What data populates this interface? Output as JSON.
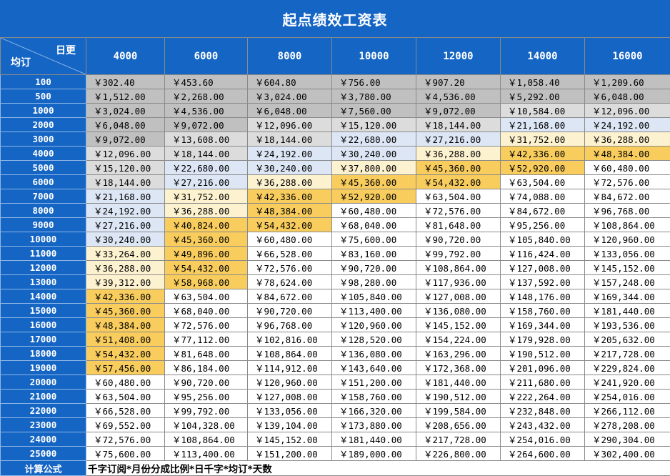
{
  "title": "起点绩效工资表",
  "corner": {
    "top": "日更",
    "bottom": "均订"
  },
  "columns": [
    "4000",
    "6000",
    "8000",
    "10000",
    "12000",
    "14000",
    "16000"
  ],
  "colors": {
    "header_blue": "#1565c4",
    "gray": "#c0c0c0",
    "light_gray": "#dcdcdc",
    "lavender": "#dce6f5",
    "cream": "#fdf2cf",
    "gold": "#f8cd5e",
    "white": "#ffffff"
  },
  "rows": [
    {
      "label": "100",
      "values": [
        "￥302.40",
        "￥453.60",
        "￥604.80",
        "￥756.00",
        "￥907.20",
        "￥1,058.40",
        "￥1,209.60"
      ],
      "fills": [
        "gray",
        "gray",
        "gray",
        "gray",
        "gray",
        "gray",
        "gray"
      ]
    },
    {
      "label": "500",
      "values": [
        "￥1,512.00",
        "￥2,268.00",
        "￥3,024.00",
        "￥3,780.00",
        "￥4,536.00",
        "￥5,292.00",
        "￥6,048.00"
      ],
      "fills": [
        "gray",
        "gray",
        "gray",
        "gray",
        "gray",
        "gray",
        "gray"
      ]
    },
    {
      "label": "1000",
      "values": [
        "￥3,024.00",
        "￥4,536.00",
        "￥6,048.00",
        "￥7,560.00",
        "￥9,072.00",
        "￥10,584.00",
        "￥12,096.00"
      ],
      "fills": [
        "gray",
        "gray",
        "gray",
        "gray",
        "gray",
        "light_gray",
        "light_gray"
      ]
    },
    {
      "label": "2000",
      "values": [
        "￥6,048.00",
        "￥9,072.00",
        "￥12,096.00",
        "￥15,120.00",
        "￥18,144.00",
        "￥21,168.00",
        "￥24,192.00"
      ],
      "fills": [
        "gray",
        "gray",
        "light_gray",
        "light_gray",
        "light_gray",
        "lavender",
        "lavender"
      ]
    },
    {
      "label": "3000",
      "values": [
        "￥9,072.00",
        "￥13,608.00",
        "￥18,144.00",
        "￥22,680.00",
        "￥27,216.00",
        "￥31,752.00",
        "￥36,288.00"
      ],
      "fills": [
        "gray",
        "light_gray",
        "light_gray",
        "lavender",
        "lavender",
        "cream",
        "cream"
      ]
    },
    {
      "label": "4000",
      "values": [
        "￥12,096.00",
        "￥18,144.00",
        "￥24,192.00",
        "￥30,240.00",
        "￥36,288.00",
        "￥42,336.00",
        "￥48,384.00"
      ],
      "fills": [
        "light_gray",
        "light_gray",
        "lavender",
        "lavender",
        "cream",
        "gold",
        "gold"
      ]
    },
    {
      "label": "5000",
      "values": [
        "￥15,120.00",
        "￥22,680.00",
        "￥30,240.00",
        "￥37,800.00",
        "￥45,360.00",
        "￥52,920.00",
        "￥60,480.00"
      ],
      "fills": [
        "light_gray",
        "lavender",
        "lavender",
        "cream",
        "gold",
        "gold",
        "white"
      ]
    },
    {
      "label": "6000",
      "values": [
        "￥18,144.00",
        "￥27,216.00",
        "￥36,288.00",
        "￥45,360.00",
        "￥54,432.00",
        "￥63,504.00",
        "￥72,576.00"
      ],
      "fills": [
        "light_gray",
        "lavender",
        "cream",
        "gold",
        "gold",
        "white",
        "white"
      ]
    },
    {
      "label": "7000",
      "values": [
        "￥21,168.00",
        "￥31,752.00",
        "￥42,336.00",
        "￥52,920.00",
        "￥63,504.00",
        "￥74,088.00",
        "￥84,672.00"
      ],
      "fills": [
        "lavender",
        "cream",
        "gold",
        "gold",
        "white",
        "white",
        "white"
      ]
    },
    {
      "label": "8000",
      "values": [
        "￥24,192.00",
        "￥36,288.00",
        "￥48,384.00",
        "￥60,480.00",
        "￥72,576.00",
        "￥84,672.00",
        "￥96,768.00"
      ],
      "fills": [
        "lavender",
        "cream",
        "gold",
        "white",
        "white",
        "white",
        "white"
      ]
    },
    {
      "label": "9000",
      "values": [
        "￥27,216.00",
        "￥40,824.00",
        "￥54,432.00",
        "￥68,040.00",
        "￥81,648.00",
        "￥95,256.00",
        "￥108,864.00"
      ],
      "fills": [
        "lavender",
        "gold",
        "gold",
        "white",
        "white",
        "white",
        "white"
      ]
    },
    {
      "label": "10000",
      "values": [
        "￥30,240.00",
        "￥45,360.00",
        "￥60,480.00",
        "￥75,600.00",
        "￥90,720.00",
        "￥105,840.00",
        "￥120,960.00"
      ],
      "fills": [
        "lavender",
        "gold",
        "white",
        "white",
        "white",
        "white",
        "white"
      ]
    },
    {
      "label": "11000",
      "values": [
        "￥33,264.00",
        "￥49,896.00",
        "￥66,528.00",
        "￥83,160.00",
        "￥99,792.00",
        "￥116,424.00",
        "￥133,056.00"
      ],
      "fills": [
        "cream",
        "gold",
        "white",
        "white",
        "white",
        "white",
        "white"
      ]
    },
    {
      "label": "12000",
      "values": [
        "￥36,288.00",
        "￥54,432.00",
        "￥72,576.00",
        "￥90,720.00",
        "￥108,864.00",
        "￥127,008.00",
        "￥145,152.00"
      ],
      "fills": [
        "cream",
        "gold",
        "white",
        "white",
        "white",
        "white",
        "white"
      ]
    },
    {
      "label": "13000",
      "values": [
        "￥39,312.00",
        "￥58,968.00",
        "￥78,624.00",
        "￥98,280.00",
        "￥117,936.00",
        "￥137,592.00",
        "￥157,248.00"
      ],
      "fills": [
        "cream",
        "gold",
        "white",
        "white",
        "white",
        "white",
        "white"
      ]
    },
    {
      "label": "14000",
      "values": [
        "￥42,336.00",
        "￥63,504.00",
        "￥84,672.00",
        "￥105,840.00",
        "￥127,008.00",
        "￥148,176.00",
        "￥169,344.00"
      ],
      "fills": [
        "gold",
        "white",
        "white",
        "white",
        "white",
        "white",
        "white"
      ]
    },
    {
      "label": "15000",
      "values": [
        "￥45,360.00",
        "￥68,040.00",
        "￥90,720.00",
        "￥113,400.00",
        "￥136,080.00",
        "￥158,760.00",
        "￥181,440.00"
      ],
      "fills": [
        "gold",
        "white",
        "white",
        "white",
        "white",
        "white",
        "white"
      ]
    },
    {
      "label": "16000",
      "values": [
        "￥48,384.00",
        "￥72,576.00",
        "￥96,768.00",
        "￥120,960.00",
        "￥145,152.00",
        "￥169,344.00",
        "￥193,536.00"
      ],
      "fills": [
        "gold",
        "white",
        "white",
        "white",
        "white",
        "white",
        "white"
      ]
    },
    {
      "label": "17000",
      "values": [
        "￥51,408.00",
        "￥77,112.00",
        "￥102,816.00",
        "￥128,520.00",
        "￥154,224.00",
        "￥179,928.00",
        "￥205,632.00"
      ],
      "fills": [
        "gold",
        "white",
        "white",
        "white",
        "white",
        "white",
        "white"
      ]
    },
    {
      "label": "18000",
      "values": [
        "￥54,432.00",
        "￥81,648.00",
        "￥108,864.00",
        "￥136,080.00",
        "￥163,296.00",
        "￥190,512.00",
        "￥217,728.00"
      ],
      "fills": [
        "gold",
        "white",
        "white",
        "white",
        "white",
        "white",
        "white"
      ]
    },
    {
      "label": "19000",
      "values": [
        "￥57,456.00",
        "￥86,184.00",
        "￥114,912.00",
        "￥143,640.00",
        "￥172,368.00",
        "￥201,096.00",
        "￥229,824.00"
      ],
      "fills": [
        "gold",
        "white",
        "white",
        "white",
        "white",
        "white",
        "white"
      ]
    },
    {
      "label": "20000",
      "values": [
        "￥60,480.00",
        "￥90,720.00",
        "￥120,960.00",
        "￥151,200.00",
        "￥181,440.00",
        "￥211,680.00",
        "￥241,920.00"
      ],
      "fills": [
        "white",
        "white",
        "white",
        "white",
        "white",
        "white",
        "white"
      ]
    },
    {
      "label": "21000",
      "values": [
        "￥63,504.00",
        "￥95,256.00",
        "￥127,008.00",
        "￥158,760.00",
        "￥190,512.00",
        "￥222,264.00",
        "￥254,016.00"
      ],
      "fills": [
        "white",
        "white",
        "white",
        "white",
        "white",
        "white",
        "white"
      ]
    },
    {
      "label": "22000",
      "values": [
        "￥66,528.00",
        "￥99,792.00",
        "￥133,056.00",
        "￥166,320.00",
        "￥199,584.00",
        "￥232,848.00",
        "￥266,112.00"
      ],
      "fills": [
        "white",
        "white",
        "white",
        "white",
        "white",
        "white",
        "white"
      ]
    },
    {
      "label": "23000",
      "values": [
        "￥69,552.00",
        "￥104,328.00",
        "￥139,104.00",
        "￥173,880.00",
        "￥208,656.00",
        "￥243,432.00",
        "￥278,208.00"
      ],
      "fills": [
        "white",
        "white",
        "white",
        "white",
        "white",
        "white",
        "white"
      ]
    },
    {
      "label": "24000",
      "values": [
        "￥72,576.00",
        "￥108,864.00",
        "￥145,152.00",
        "￥181,440.00",
        "￥217,728.00",
        "￥254,016.00",
        "￥290,304.00"
      ],
      "fills": [
        "white",
        "white",
        "white",
        "white",
        "white",
        "white",
        "white"
      ]
    },
    {
      "label": "25000",
      "values": [
        "￥75,600.00",
        "￥113,400.00",
        "￥151,200.00",
        "￥189,000.00",
        "￥226,800.00",
        "￥264,600.00",
        "￥302,400.00"
      ],
      "fills": [
        "white",
        "white",
        "white",
        "white",
        "white",
        "white",
        "white"
      ]
    }
  ],
  "formula": {
    "label": "计算公式",
    "text": "千字订阅*月份分成比例*日千字*均订*天数"
  }
}
